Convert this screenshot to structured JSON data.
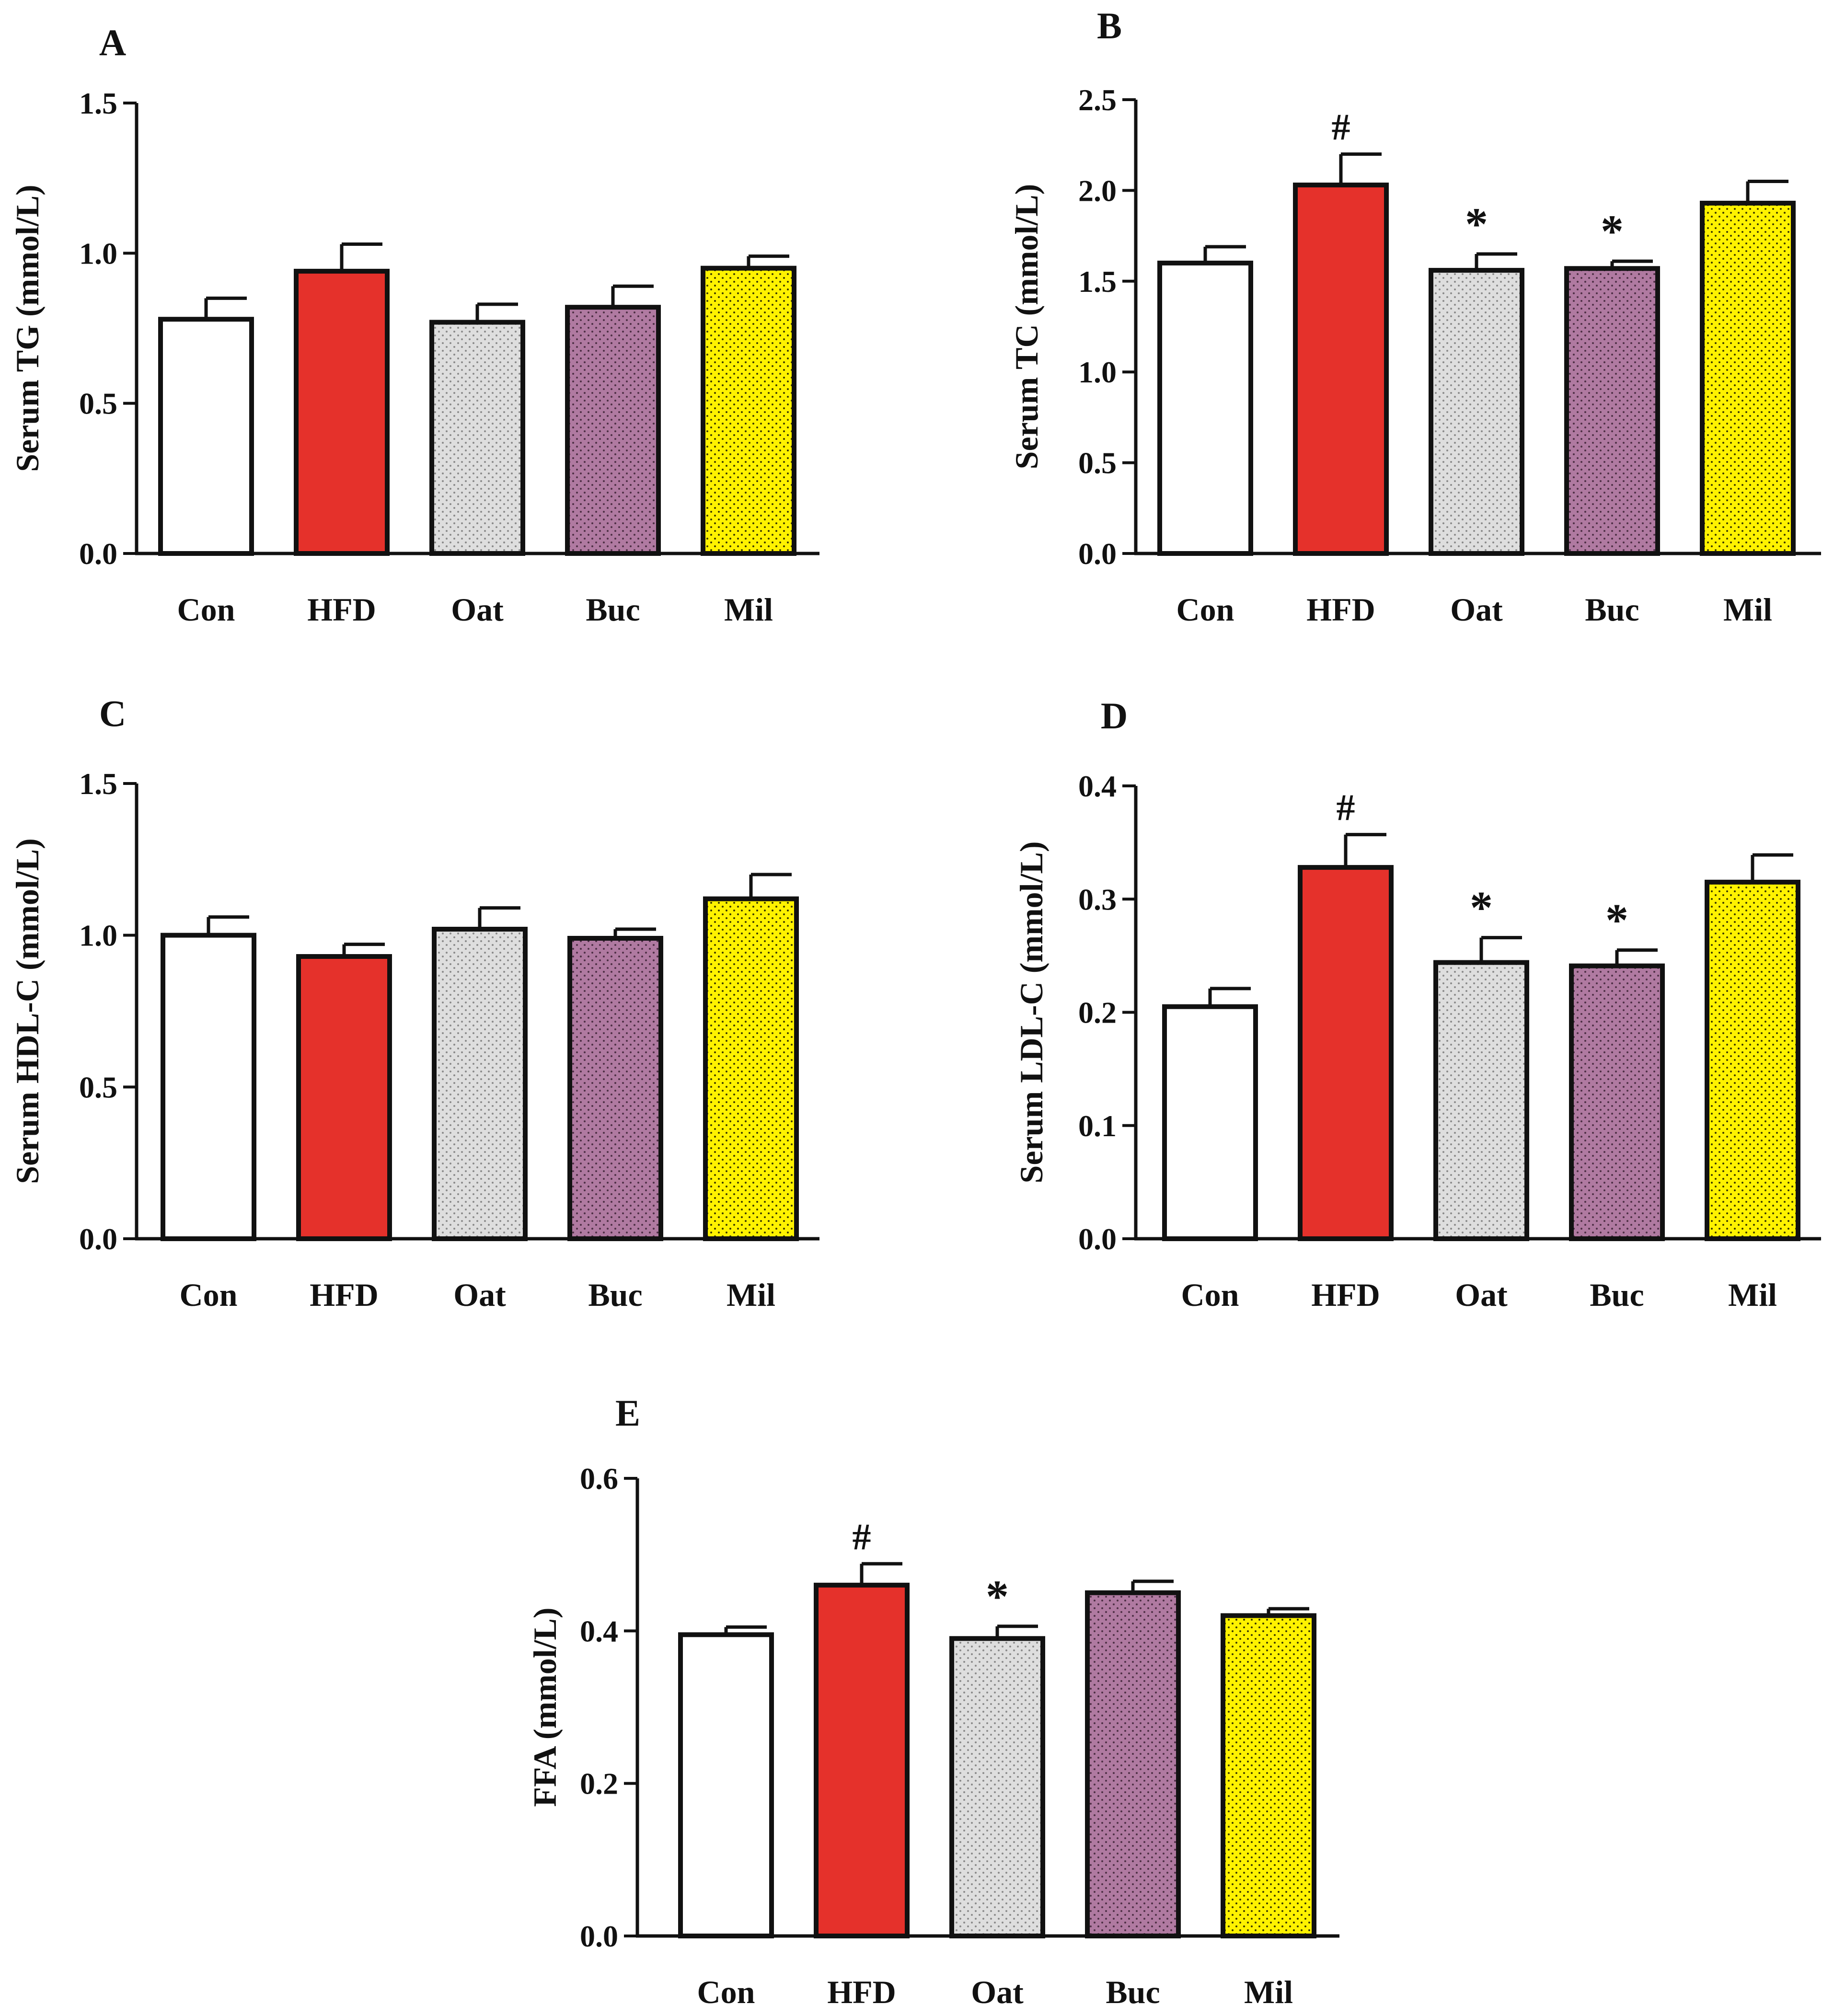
{
  "colors": {
    "axis": "#111111",
    "bar_outline": "#111111",
    "Con": "#ffffff",
    "HFD": "#e5312b",
    "Oat": "#dedede",
    "Buc": "#b07aa1",
    "Mil": "#fff200"
  },
  "chart_data": [
    {
      "id": "A",
      "type": "bar",
      "panel_label": "A",
      "ylabel": "Serum TG (mmol/L)",
      "xlabel": "",
      "categories": [
        "Con",
        "HFD",
        "Oat",
        "Buc",
        "Mil"
      ],
      "values": [
        0.78,
        0.94,
        0.77,
        0.82,
        0.95
      ],
      "errors": [
        0.07,
        0.09,
        0.06,
        0.07,
        0.04
      ],
      "annotations": [
        "",
        "",
        "",
        "",
        ""
      ],
      "ylim": [
        0,
        1.5
      ],
      "yticks": [
        0,
        0.5,
        1.0,
        1.5
      ],
      "ytick_labels": [
        "0.0",
        "0.5",
        "1.0",
        "1.5"
      ],
      "grid": false
    },
    {
      "id": "B",
      "type": "bar",
      "panel_label": "B",
      "ylabel": "Serum TC (mmol/L)",
      "xlabel": "",
      "categories": [
        "Con",
        "HFD",
        "Oat",
        "Buc",
        "Mil"
      ],
      "values": [
        1.6,
        2.03,
        1.56,
        1.57,
        1.93
      ],
      "errors": [
        0.09,
        0.17,
        0.09,
        0.04,
        0.12
      ],
      "annotations": [
        "",
        "#",
        "*",
        "*",
        ""
      ],
      "ylim": [
        0,
        2.5
      ],
      "yticks": [
        0,
        0.5,
        1.0,
        1.5,
        2.0,
        2.5
      ],
      "ytick_labels": [
        "0.0",
        "0.5",
        "1.0",
        "1.5",
        "2.0",
        "2.5"
      ],
      "grid": false
    },
    {
      "id": "C",
      "type": "bar",
      "panel_label": "C",
      "ylabel": "Serum HDL-C (mmol/L)",
      "xlabel": "",
      "categories": [
        "Con",
        "HFD",
        "Oat",
        "Buc",
        "Mil"
      ],
      "values": [
        1.0,
        0.93,
        1.02,
        0.99,
        1.12
      ],
      "errors": [
        0.06,
        0.04,
        0.07,
        0.03,
        0.08
      ],
      "annotations": [
        "",
        "",
        "",
        "",
        ""
      ],
      "ylim": [
        0,
        1.5
      ],
      "yticks": [
        0,
        0.5,
        1.0,
        1.5
      ],
      "ytick_labels": [
        "0.0",
        "0.5",
        "1.0",
        "1.5"
      ],
      "grid": false
    },
    {
      "id": "D",
      "type": "bar",
      "panel_label": "D",
      "ylabel": "Serum LDL-C (mmol/L)",
      "xlabel": "",
      "categories": [
        "Con",
        "HFD",
        "Oat",
        "Buc",
        "Mil"
      ],
      "values": [
        0.205,
        0.328,
        0.244,
        0.241,
        0.315
      ],
      "errors": [
        0.016,
        0.029,
        0.022,
        0.014,
        0.024
      ],
      "annotations": [
        "",
        "#",
        "*",
        "*",
        ""
      ],
      "ylim": [
        0,
        0.4
      ],
      "yticks": [
        0,
        0.1,
        0.2,
        0.3,
        0.4
      ],
      "ytick_labels": [
        "0.0",
        "0.1",
        "0.2",
        "0.3",
        "0.4"
      ],
      "grid": false
    },
    {
      "id": "E",
      "type": "bar",
      "panel_label": "E",
      "ylabel": "FFA (mmol/L)",
      "xlabel": "",
      "categories": [
        "Con",
        "HFD",
        "Oat",
        "Buc",
        "Mil"
      ],
      "values": [
        0.395,
        0.46,
        0.39,
        0.45,
        0.42
      ],
      "errors": [
        0.01,
        0.028,
        0.016,
        0.015,
        0.009
      ],
      "annotations": [
        "",
        "#",
        "*",
        "",
        ""
      ],
      "ylim": [
        0,
        0.6
      ],
      "yticks": [
        0,
        0.2,
        0.4,
        0.6
      ],
      "ytick_labels": [
        "0.0",
        "0.2",
        "0.4",
        "0.6"
      ],
      "grid": false
    }
  ]
}
